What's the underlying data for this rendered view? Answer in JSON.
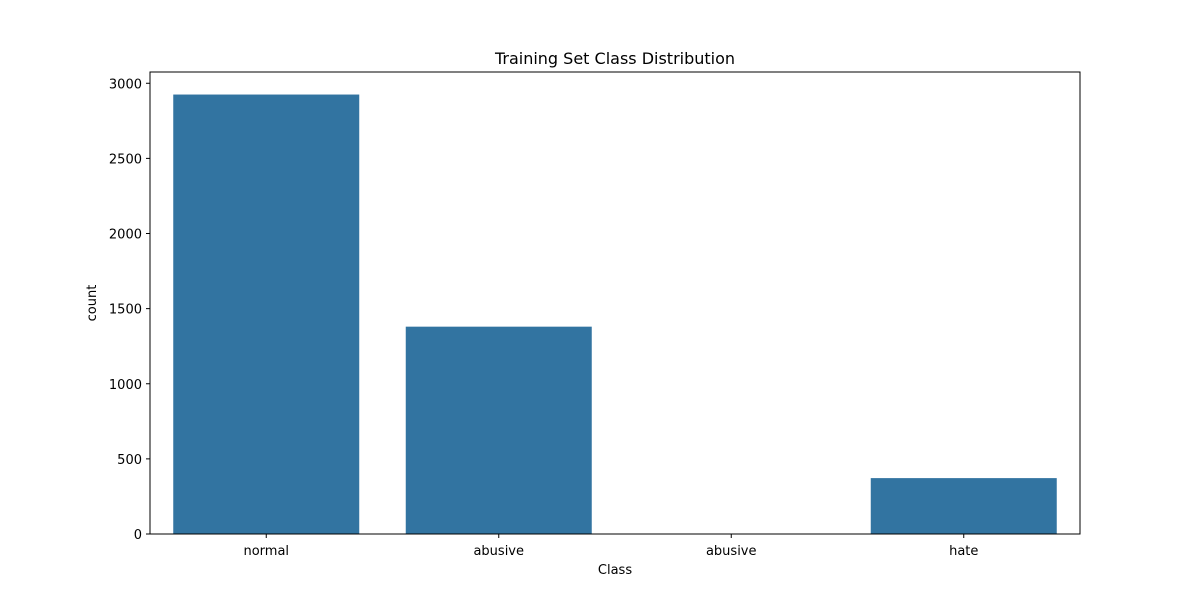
{
  "chart_data": {
    "type": "bar",
    "title": "Training Set Class Distribution",
    "xlabel": "Class",
    "ylabel": "count",
    "categories": [
      "normal",
      "abusive",
      " abusive",
      "hate"
    ],
    "values": [
      2925,
      1380,
      0,
      372
    ],
    "ylim": [
      0,
      3075
    ],
    "yticks": [
      0,
      500,
      1000,
      1500,
      2000,
      2500,
      3000
    ],
    "grid": false,
    "colors": {
      "bar": "#3274a1"
    }
  }
}
